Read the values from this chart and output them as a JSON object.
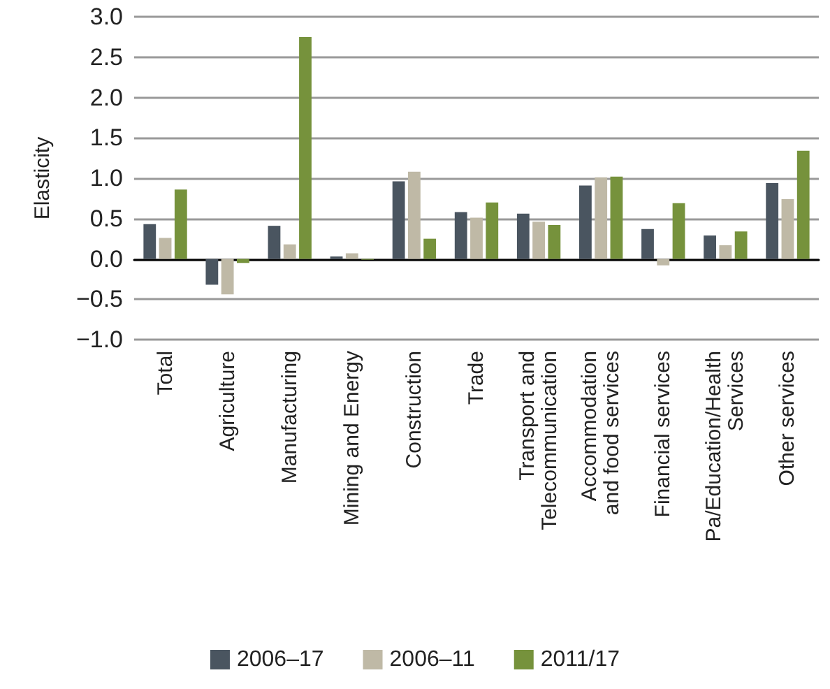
{
  "chart_data": {
    "type": "bar",
    "ylabel": "Elasticity",
    "categories": [
      "Total",
      "Agriculture",
      "Manufacturing",
      "Mining and Energy",
      "Construction",
      "Trade",
      "Transport and\nTelecommunication",
      "Accommodation\nand food services",
      "Financial services",
      "Pa/Education/Health\nServices",
      "Other services"
    ],
    "series": [
      {
        "name": "2006–17",
        "color": "#4a5560",
        "values": [
          0.43,
          -0.32,
          0.41,
          0.03,
          0.96,
          0.58,
          0.56,
          0.91,
          0.37,
          0.29,
          0.94
        ]
      },
      {
        "name": "2006–11",
        "color": "#bfb9a6",
        "values": [
          0.26,
          -0.44,
          0.18,
          0.07,
          1.08,
          0.51,
          0.46,
          1.01,
          -0.08,
          0.17,
          0.74
        ]
      },
      {
        "name": "2011/17",
        "color": "#76923c",
        "values": [
          0.86,
          -0.05,
          2.75,
          -0.01,
          0.25,
          0.7,
          0.42,
          1.02,
          0.69,
          0.34,
          1.34
        ]
      }
    ],
    "ylim": [
      -1.0,
      3.0
    ],
    "yticks": [
      {
        "value": -1,
        "label": "−1.0"
      },
      {
        "value": -0.5,
        "label": "−0.5"
      },
      {
        "value": 0,
        "label": "0.0"
      },
      {
        "value": 0.5,
        "label": "0.5"
      },
      {
        "value": 1,
        "label": "1.0"
      },
      {
        "value": 1.5,
        "label": "1.5"
      },
      {
        "value": 2,
        "label": "2.0"
      },
      {
        "value": 2.5,
        "label": "2.5"
      },
      {
        "value": 3,
        "label": "3.0"
      }
    ],
    "grid": "y",
    "legend": "bottom"
  }
}
